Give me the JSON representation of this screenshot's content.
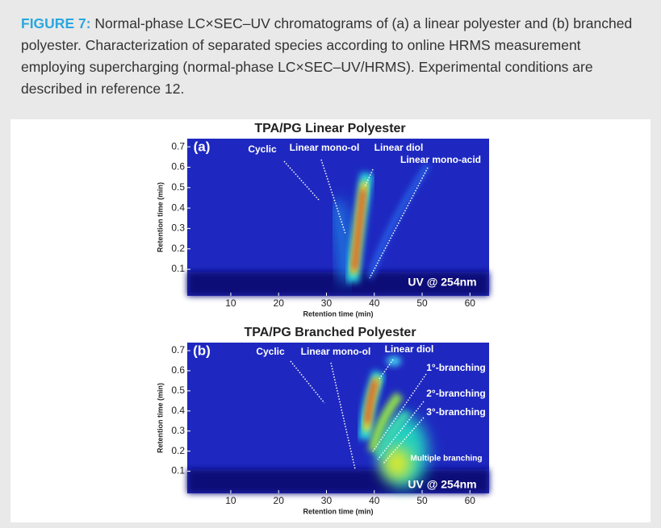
{
  "caption": {
    "label": "FIGURE 7:",
    "text": "Normal-phase LC×SEC–UV chromatograms of (a) a linear polyester and (b) branched polyester. Characterization of separated species according to online HRMS measurement employing supercharging (normal-phase LC×SEC–UV/HRMS). Experimental conditions are described in reference 12."
  },
  "panels": [
    {
      "title": "TPA/PG Linear Polyester",
      "panel_label": "(a)",
      "x_label": "Retention time (min)",
      "y_label": "Retention time (min)",
      "xlim": [
        0.9,
        64
      ],
      "ylim": [
        -0.03,
        0.74
      ],
      "xticks": [
        10,
        20,
        30,
        40,
        50,
        60
      ],
      "yticks": [
        0.1,
        0.2,
        0.3,
        0.4,
        0.5,
        0.6,
        0.7
      ],
      "annotations": [
        "Cyclic",
        "Linear mono-ol",
        "Linear diol",
        "Linear mono-acid"
      ],
      "detector": "UV @ 254nm"
    },
    {
      "title": "TPA/PG Branched Polyester",
      "panel_label": "(b)",
      "x_label": "Retention time (min)",
      "y_label": "Retention time (min)",
      "xlim": [
        0.9,
        64
      ],
      "ylim": [
        -0.01,
        0.74
      ],
      "xticks": [
        10,
        20,
        30,
        40,
        50,
        60
      ],
      "yticks": [
        0.1,
        0.2,
        0.3,
        0.4,
        0.5,
        0.6,
        0.7
      ],
      "annotations": [
        "Cyclic",
        "Linear mono-ol",
        "Linear diol",
        "1°-branching",
        "2°-branching",
        "3°-branching",
        "Multiple branching"
      ],
      "detector": "UV @ 254nm"
    }
  ]
}
